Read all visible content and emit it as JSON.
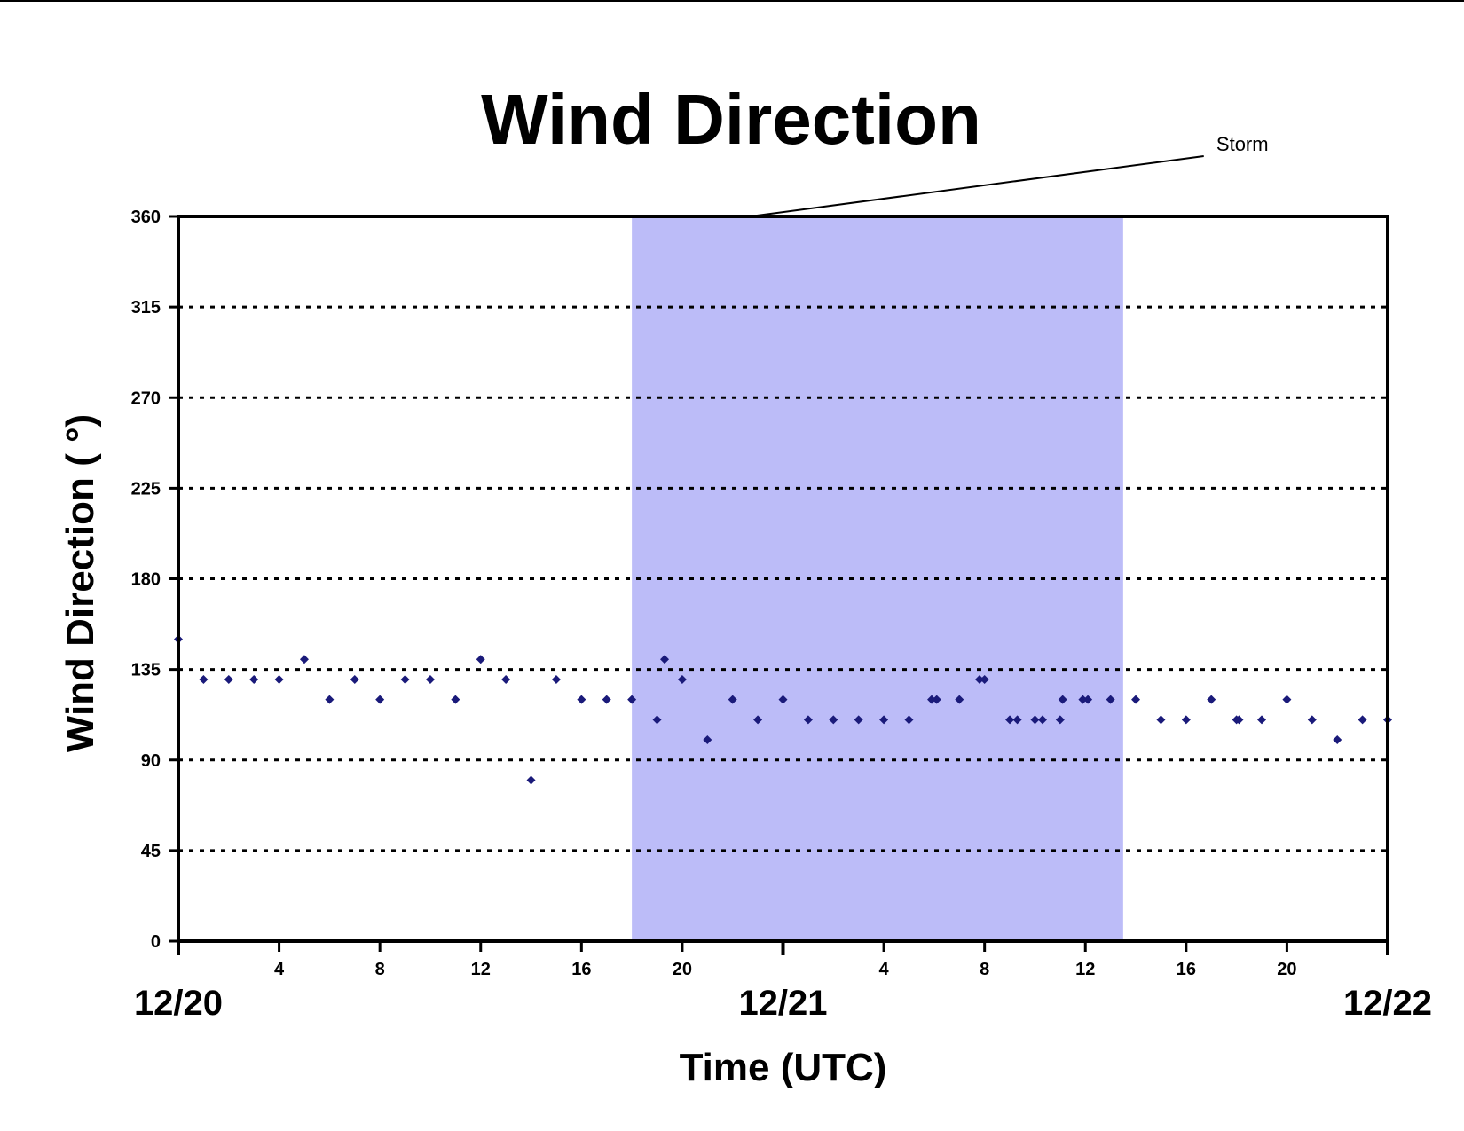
{
  "chart_data": {
    "type": "scatter",
    "title": "Wind Direction",
    "xlabel": "Time (UTC)",
    "ylabel": "Wind Direction ( °)",
    "ylim": [
      0,
      360
    ],
    "yticks": [
      "0",
      "45",
      "90",
      "135",
      "180",
      "225",
      "270",
      "315",
      "360"
    ],
    "xlim_hours": [
      0,
      48
    ],
    "xticks": [
      {
        "hour": 4,
        "label": "4"
      },
      {
        "hour": 8,
        "label": "8"
      },
      {
        "hour": 12,
        "label": "12"
      },
      {
        "hour": 16,
        "label": "16"
      },
      {
        "hour": 20,
        "label": "20"
      },
      {
        "hour": 28,
        "label": "4"
      },
      {
        "hour": 32,
        "label": "8"
      },
      {
        "hour": 36,
        "label": "12"
      },
      {
        "hour": 40,
        "label": "16"
      },
      {
        "hour": 44,
        "label": "20"
      }
    ],
    "date_labels": [
      {
        "hour": 0,
        "label": "12/20"
      },
      {
        "hour": 24,
        "label": "12/21"
      },
      {
        "hour": 48,
        "label": "12/22"
      }
    ],
    "grid": "horizontal dotted",
    "marker_color": "#1a1a7a",
    "shaded_region": {
      "start_hour": 18,
      "end_hour": 37.5,
      "color": "#bcbcf8",
      "label": "Storm"
    },
    "series": [
      {
        "points": [
          [
            0,
            150
          ],
          [
            1,
            130
          ],
          [
            2,
            130
          ],
          [
            3,
            130
          ],
          [
            4,
            130
          ],
          [
            5,
            140
          ],
          [
            6,
            120
          ],
          [
            7,
            130
          ],
          [
            8,
            120
          ],
          [
            9,
            130
          ],
          [
            10,
            130
          ],
          [
            11,
            120
          ],
          [
            12,
            140
          ],
          [
            13,
            130
          ],
          [
            14,
            80
          ],
          [
            15,
            130
          ],
          [
            16,
            120
          ],
          [
            17,
            120
          ],
          [
            18,
            120
          ],
          [
            19,
            110
          ],
          [
            19.3,
            140
          ],
          [
            20,
            130
          ],
          [
            21,
            100
          ],
          [
            22,
            120
          ],
          [
            23,
            110
          ],
          [
            24,
            120
          ],
          [
            25,
            110
          ],
          [
            26,
            110
          ],
          [
            27,
            110
          ],
          [
            28,
            110
          ],
          [
            29,
            110
          ],
          [
            29.9,
            120
          ],
          [
            30.1,
            120
          ],
          [
            31,
            120
          ],
          [
            31.8,
            130
          ],
          [
            32,
            130
          ],
          [
            33,
            110
          ],
          [
            33.3,
            110
          ],
          [
            34,
            110
          ],
          [
            34.3,
            110
          ],
          [
            35,
            110
          ],
          [
            35.1,
            120
          ],
          [
            35.9,
            120
          ],
          [
            36.1,
            120
          ],
          [
            37,
            120
          ],
          [
            38,
            120
          ],
          [
            39,
            110
          ],
          [
            40,
            110
          ],
          [
            41,
            120
          ],
          [
            42,
            110
          ],
          [
            42.1,
            110
          ],
          [
            43,
            110
          ],
          [
            44,
            120
          ],
          [
            45,
            110
          ],
          [
            46,
            100
          ],
          [
            47,
            110
          ],
          [
            48,
            110
          ]
        ]
      }
    ]
  }
}
